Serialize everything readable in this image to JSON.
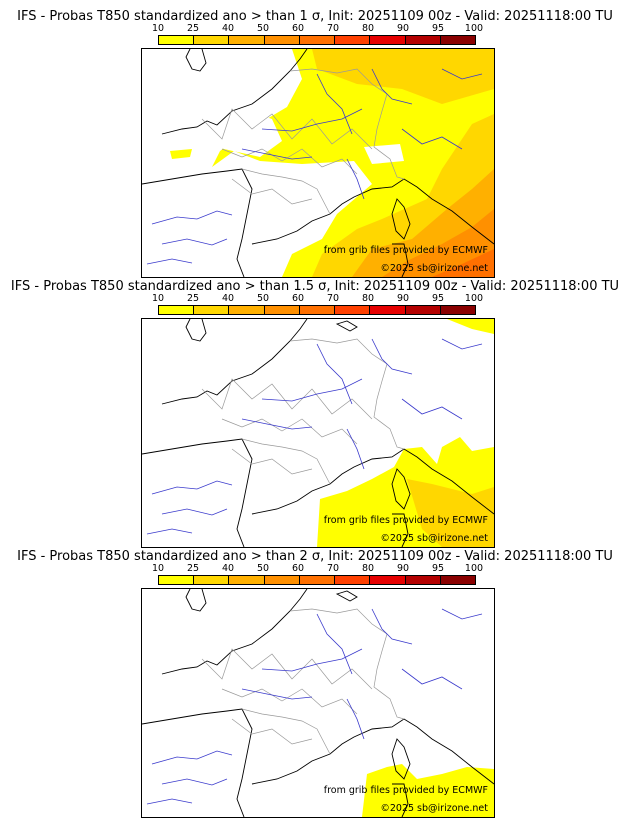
{
  "legend": {
    "ticks": [
      "10",
      "25",
      "40",
      "50",
      "60",
      "70",
      "80",
      "90",
      "95",
      "100"
    ],
    "colors": [
      "#ffff00",
      "#ffd700",
      "#ffb000",
      "#ff9000",
      "#ff7000",
      "#ff4000",
      "#e60000",
      "#b40000",
      "#8a0000",
      "#5a0000"
    ]
  },
  "panels": [
    {
      "title": "IFS - Probas T850  standardized ano > than 1 σ, Init: 20251109 00z - Valid: 20251118:00 TU",
      "credit_source": "from grib files provided by ECMWF",
      "credit_copyright": "©2025 sb@irizone.net"
    },
    {
      "title": "IFS - Probas T850  standardized ano > than 1.5 σ, Init: 20251109 00z - Valid: 20251118:00 TU",
      "credit_source": "from grib files provided by ECMWF",
      "credit_copyright": "©2025 sb@irizone.net"
    },
    {
      "title": "IFS - Probas T850  standardized ano > than 2 σ, Init: 20251109 00z - Valid: 20251118:00 TU",
      "credit_source": "from grib files provided by ECMWF",
      "credit_copyright": "©2025 sb@irizone.net"
    }
  ]
}
